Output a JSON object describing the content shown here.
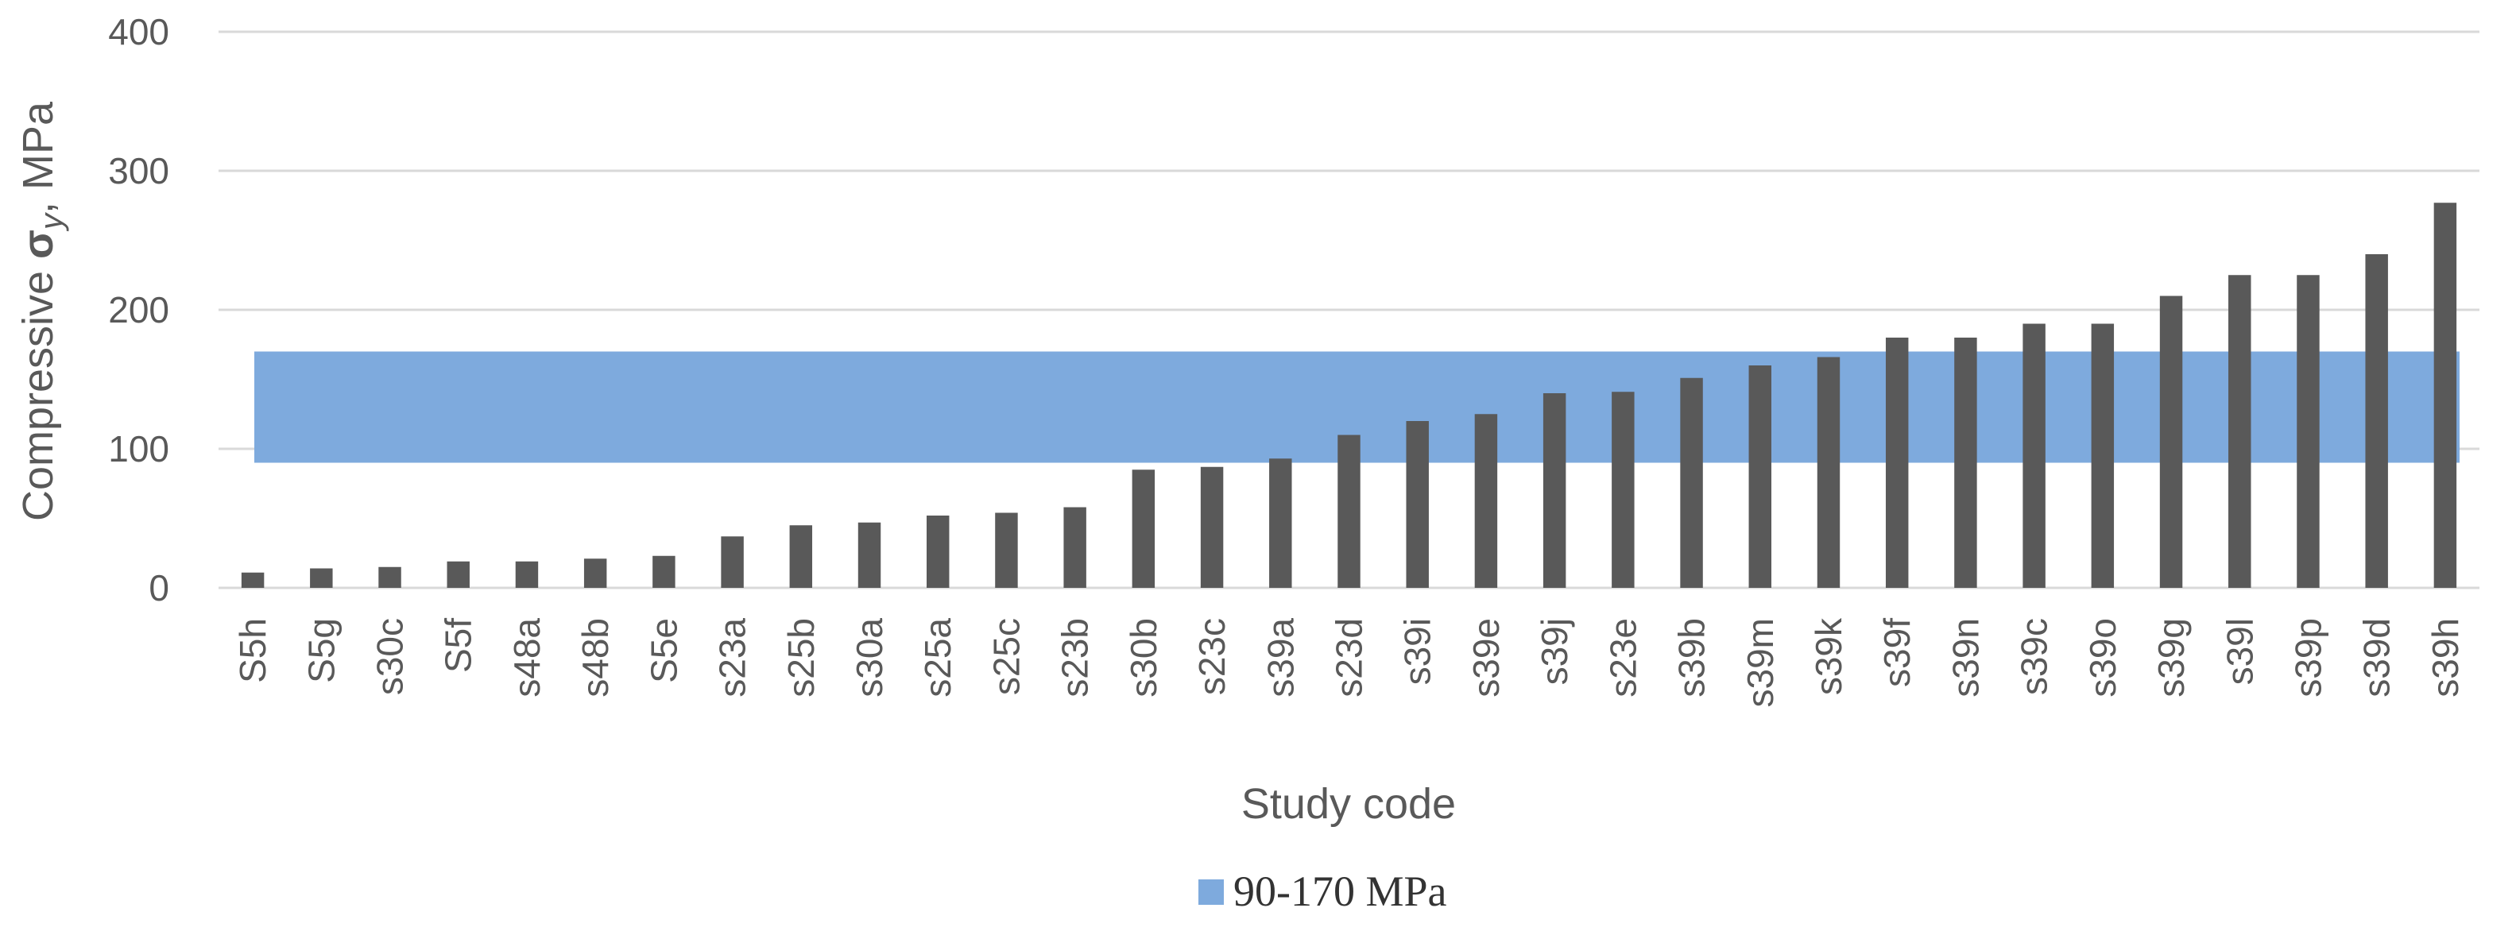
{
  "chart_data": {
    "type": "bar",
    "title": "",
    "xlabel": "Study code",
    "ylabel_prefix": "Compressive ",
    "ylabel_sigma": "σ",
    "ylabel_sub": "y",
    "ylabel_suffix": ",  MPa",
    "ylim": [
      0,
      400
    ],
    "yticks": [
      0,
      100,
      200,
      300,
      400
    ],
    "grid": true,
    "categories": [
      "S5h",
      "S5g",
      "s30c",
      "S5f",
      "s48a",
      "s48b",
      "S5e",
      "s23a",
      "s25b",
      "s30a",
      "s25a",
      "s25c",
      "s23b",
      "s30b",
      "s23c",
      "s39a",
      "s23d",
      "s39i",
      "s39e",
      "s39j",
      "s23e",
      "s39b",
      "s39m",
      "s39k",
      "s39f",
      "s39n",
      "s39c",
      "s39o",
      "s39g",
      "s39l",
      "s39p",
      "s39d",
      "s39h"
    ],
    "values": [
      11,
      14,
      15,
      19,
      19,
      21,
      23,
      37,
      45,
      47,
      52,
      54,
      58,
      85,
      87,
      93,
      110,
      120,
      125,
      140,
      141,
      151,
      160,
      166,
      180,
      180,
      190,
      190,
      210,
      225,
      225,
      240,
      277
    ],
    "band": {
      "name": "90-170 MPa",
      "low": 90,
      "high": 170,
      "color": "#7eaadd"
    },
    "bar_color": "#595959",
    "legend": {
      "position": "bottom-center",
      "entries": [
        "90-170 MPa"
      ]
    }
  }
}
